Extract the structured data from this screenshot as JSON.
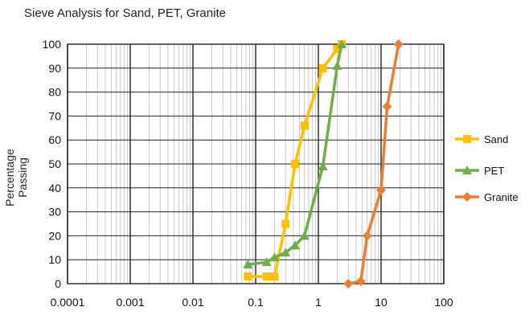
{
  "chart_data": {
    "type": "line",
    "title": "Sieve Analysis for Sand, PET, Granite",
    "xlabel": "",
    "ylabel": "Percentage Passing",
    "x_scale": "log",
    "xlim": [
      0.0001,
      100
    ],
    "ylim": [
      0,
      100
    ],
    "x_ticks": [
      "0.0001",
      "0.001",
      "0.01",
      "0.1",
      "1",
      "10",
      "100"
    ],
    "y_ticks": [
      "0",
      "10",
      "20",
      "30",
      "40",
      "50",
      "60",
      "70",
      "80",
      "90",
      "100"
    ],
    "grid": true,
    "legend_position": "right",
    "series": [
      {
        "name": "Sand",
        "color": "#FFC000",
        "marker": "square",
        "points": [
          [
            0.075,
            3
          ],
          [
            0.15,
            3
          ],
          [
            0.18,
            3
          ],
          [
            0.2,
            3
          ],
          [
            0.3,
            25
          ],
          [
            0.425,
            50
          ],
          [
            0.6,
            66
          ],
          [
            1.18,
            90
          ],
          [
            2.0,
            98
          ],
          [
            2.36,
            100
          ]
        ]
      },
      {
        "name": "PET",
        "color": "#70AD47",
        "marker": "triangle",
        "points": [
          [
            0.075,
            8
          ],
          [
            0.15,
            9
          ],
          [
            0.2,
            11
          ],
          [
            0.3,
            13
          ],
          [
            0.425,
            16
          ],
          [
            0.6,
            20
          ],
          [
            1.18,
            49
          ],
          [
            2.0,
            91
          ],
          [
            2.36,
            100
          ]
        ]
      },
      {
        "name": "Granite",
        "color": "#ED7D31",
        "marker": "diamond",
        "points": [
          [
            3.0,
            0
          ],
          [
            4.75,
            1
          ],
          [
            6.0,
            20
          ],
          [
            10.0,
            39
          ],
          [
            12.5,
            74
          ],
          [
            19.0,
            100
          ]
        ]
      }
    ]
  }
}
